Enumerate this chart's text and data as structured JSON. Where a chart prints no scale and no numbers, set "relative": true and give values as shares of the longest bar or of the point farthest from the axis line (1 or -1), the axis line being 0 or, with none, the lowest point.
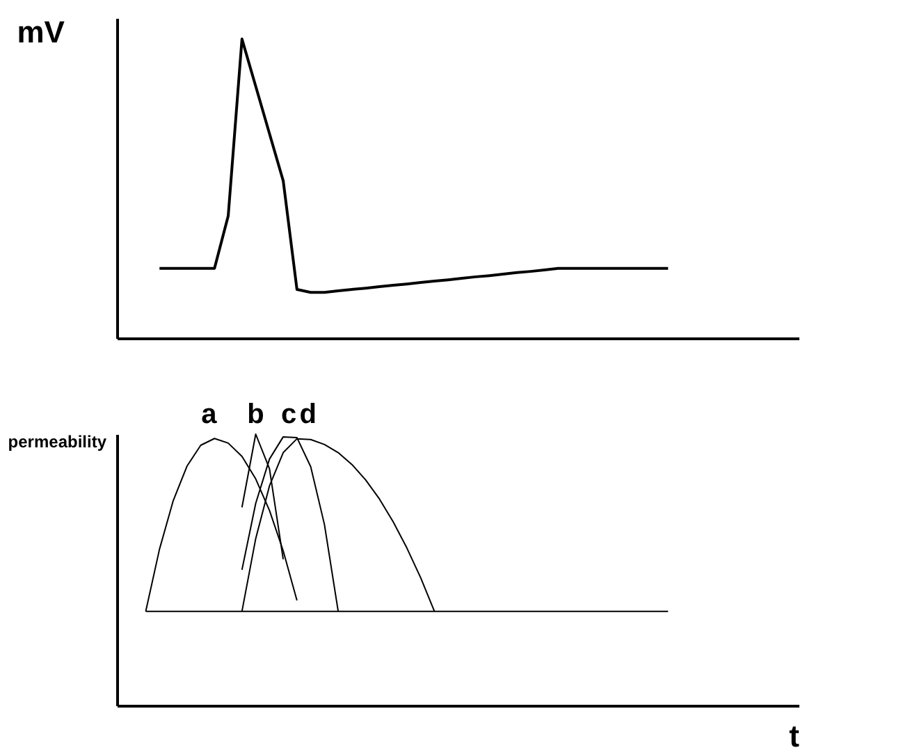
{
  "chart_data": [
    {
      "type": "line",
      "relative": true,
      "ylabel": "mV",
      "tick_labels": false,
      "grid": false,
      "categories": [
        null,
        null,
        null,
        null,
        null,
        null,
        null,
        null,
        null,
        null,
        null,
        null,
        null,
        null,
        null,
        null,
        null,
        null,
        null,
        null,
        null,
        null,
        null,
        null,
        null,
        null,
        null,
        null,
        null,
        null,
        null,
        null,
        null,
        null,
        null,
        null,
        null,
        null,
        null,
        null
      ],
      "series": [
        {
          "color": "#000000",
          "values": [
            null,
            0.233,
            0.233,
            0.233,
            0.233,
            0.233,
            0.409,
            1,
            0.842,
            0.684,
            0.526,
            0.163,
            0.153,
            0.153,
            0.158,
            0.163,
            0.167,
            0.172,
            0.177,
            0.181,
            0.186,
            0.191,
            0.195,
            0.2,
            0.205,
            0.209,
            0.214,
            0.219,
            0.223,
            0.228,
            0.233,
            0.233,
            0.233,
            0.233,
            0.233,
            0.233,
            0.233,
            0.233,
            0.233,
            null
          ]
        }
      ]
    },
    {
      "type": "line",
      "relative": true,
      "ylabel": "permeability",
      "xlabel": "t",
      "tick_labels": false,
      "grid": false,
      "categories": [
        null,
        null,
        null,
        null,
        null,
        null,
        null,
        null,
        null,
        null,
        null,
        null,
        null,
        null,
        null,
        null,
        null,
        null,
        null,
        null,
        null,
        null,
        null,
        null,
        null,
        null,
        null,
        null,
        null,
        null,
        null,
        null,
        null,
        null,
        null,
        null,
        null,
        null,
        null,
        null
      ],
      "series": [
        {
          "color": "#000000",
          "values": [
            0.347,
            0.347,
            0.347,
            0.347,
            0.347,
            0.347,
            0.347,
            0.347,
            0.347,
            0.347,
            0.347,
            0.347,
            0.347,
            0.347,
            0.347,
            0.347,
            0.347,
            0.347,
            0.347,
            0.347,
            0.347,
            0.347,
            0.347,
            0.347,
            0.347,
            0.347,
            0.347,
            0.347,
            0.347,
            0.347,
            0.347,
            0.347,
            0.347,
            0.347,
            0.347,
            0.347,
            0.347,
            0.347,
            0.347,
            null
          ]
        },
        {
          "name": "a",
          "color": "#000000",
          "values": [
            0.347,
            0.576,
            0.755,
            0.882,
            0.959,
            0.984,
            0.967,
            0.918,
            0.835,
            0.719,
            0.57,
            0.387,
            null,
            null,
            null,
            null,
            null,
            null,
            null,
            null,
            null,
            null,
            null,
            null,
            null,
            null,
            null,
            null,
            null,
            null,
            null,
            null,
            null,
            null,
            null,
            null,
            null,
            null,
            null,
            null
          ]
        },
        {
          "name": "b",
          "color": "#000000",
          "values": [
            null,
            null,
            null,
            null,
            null,
            null,
            null,
            0.73,
            1,
            0.873,
            0.539,
            null,
            null,
            null,
            null,
            null,
            null,
            null,
            null,
            null,
            null,
            null,
            null,
            null,
            null,
            null,
            null,
            null,
            null,
            null,
            null,
            null,
            null,
            null,
            null,
            null,
            null,
            null,
            null,
            null
          ]
        },
        {
          "name": "c",
          "color": "#000000",
          "values": [
            null,
            null,
            null,
            null,
            null,
            null,
            null,
            0.5,
            0.745,
            0.908,
            0.99,
            0.987,
            0.88,
            0.667,
            0.347,
            null,
            null,
            null,
            null,
            null,
            null,
            null,
            null,
            null,
            null,
            null,
            null,
            null,
            null,
            null,
            null,
            null,
            null,
            null,
            null,
            null,
            null,
            null,
            null,
            null
          ]
        },
        {
          "name": "d",
          "color": "#000000",
          "values": [
            null,
            null,
            null,
            null,
            null,
            null,
            null,
            0.347,
            0.615,
            0.809,
            0.932,
            0.983,
            0.98,
            0.962,
            0.932,
            0.888,
            0.831,
            0.761,
            0.677,
            0.58,
            0.471,
            0.347,
            null,
            null,
            null,
            null,
            null,
            null,
            null,
            null,
            null,
            null,
            null,
            null,
            null,
            null,
            null,
            null,
            null,
            null
          ]
        }
      ]
    }
  ]
}
